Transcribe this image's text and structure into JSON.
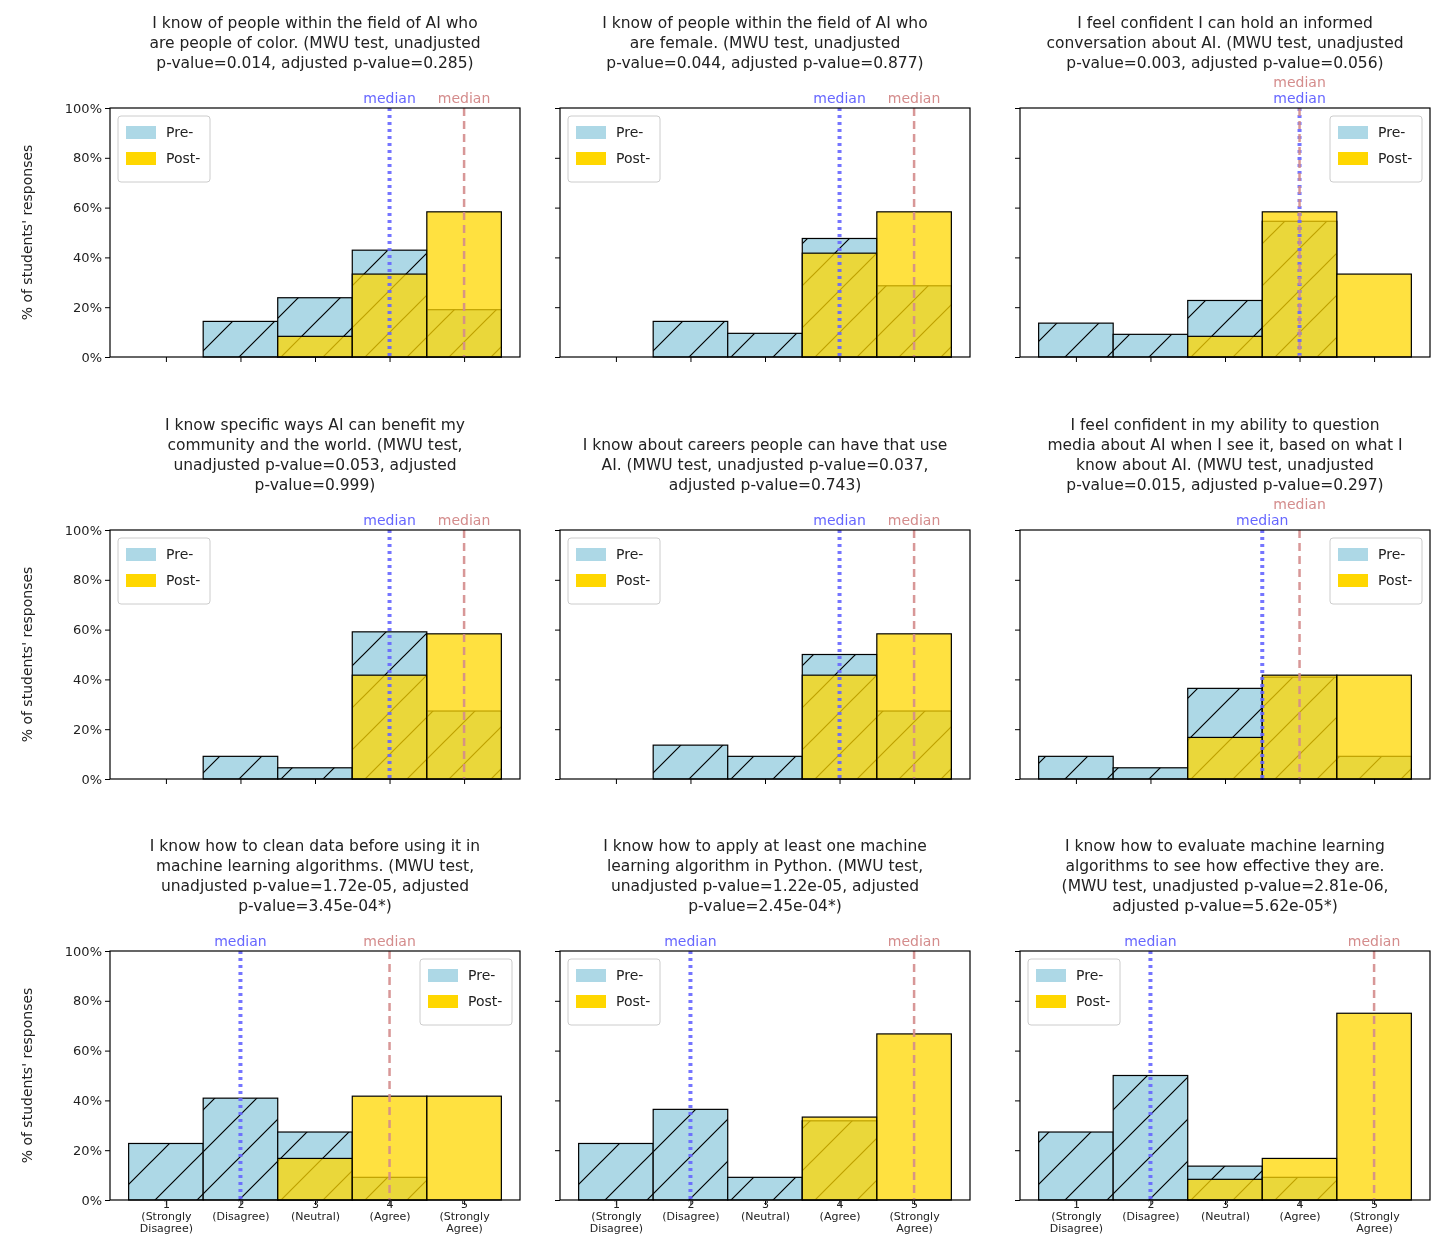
{
  "chart_data": [
    {
      "type": "histogram",
      "title": "I know of people within the field of AI who\nare people of color. (MWU test, unadjusted\np-value=0.014, adjusted p-value=0.285)",
      "ylabel": "% of students' responses",
      "bins": [
        0.5,
        1.5,
        2.5,
        3.5,
        4.5,
        5.5
      ],
      "series": [
        {
          "name": "Pre-",
          "color": "#add8e6",
          "values": [
            0,
            14.3,
            23.8,
            42.9,
            19.0
          ]
        },
        {
          "name": "Post-",
          "color": "#ffd700",
          "values": [
            0,
            0,
            8.3,
            33.3,
            58.3
          ]
        }
      ],
      "xlim": [
        0.25,
        5.75
      ],
      "xticks": [
        {
          "value": 1,
          "label": null
        },
        {
          "value": 2,
          "label": null
        },
        {
          "value": 3,
          "label": null
        },
        {
          "value": 4,
          "label": null
        },
        {
          "value": 5,
          "label": null
        }
      ],
      "ylim": [
        0,
        100
      ],
      "yticks": [
        {
          "value": 0,
          "label": "0%"
        },
        {
          "value": 20,
          "label": "20%"
        },
        {
          "value": 40,
          "label": "40%"
        },
        {
          "value": 60,
          "label": "60%"
        },
        {
          "value": 80,
          "label": "80%"
        },
        {
          "value": 100,
          "label": "100%"
        }
      ],
      "ref_lines": [
        {
          "axis": "x",
          "value": 4,
          "label": "median",
          "color": "#6666ff",
          "line_style": "dotted"
        },
        {
          "axis": "x",
          "value": 5,
          "label": "median",
          "color": "#d48c8c",
          "line_style": "dashed"
        }
      ],
      "legend": "top left",
      "tick_labels": "y"
    },
    {
      "type": "histogram",
      "title": "I know of people within the field of AI who\nare female. (MWU test, unadjusted\np-value=0.044, adjusted p-value=0.877)",
      "bins": [
        0.5,
        1.5,
        2.5,
        3.5,
        4.5,
        5.5
      ],
      "series": [
        {
          "name": "Pre-",
          "color": "#add8e6",
          "values": [
            0,
            14.3,
            9.5,
            47.6,
            28.6
          ]
        },
        {
          "name": "Post-",
          "color": "#ffd700",
          "values": [
            0,
            0,
            0,
            41.7,
            58.3
          ]
        }
      ],
      "xlim": [
        0.25,
        5.75
      ],
      "xticks": [
        {
          "value": 1,
          "label": null
        },
        {
          "value": 2,
          "label": null
        },
        {
          "value": 3,
          "label": null
        },
        {
          "value": 4,
          "label": null
        },
        {
          "value": 5,
          "label": null
        }
      ],
      "ylim": [
        0,
        100
      ],
      "yticks": [
        {
          "value": 0,
          "label": null
        },
        {
          "value": 20,
          "label": null
        },
        {
          "value": 40,
          "label": null
        },
        {
          "value": 60,
          "label": null
        },
        {
          "value": 80,
          "label": null
        },
        {
          "value": 100,
          "label": null
        }
      ],
      "ref_lines": [
        {
          "axis": "x",
          "value": 4,
          "label": "median",
          "color": "#6666ff",
          "line_style": "dotted"
        },
        {
          "axis": "x",
          "value": 5,
          "label": "median",
          "color": "#d48c8c",
          "line_style": "dashed"
        }
      ],
      "legend": "top left",
      "tick_labels": false
    },
    {
      "type": "histogram",
      "title": "I feel confident I can hold an informed\nconversation about AI. (MWU test, unadjusted\np-value=0.003, adjusted p-value=0.056)",
      "bins": [
        0.5,
        1.5,
        2.5,
        3.5,
        4.5,
        5.5
      ],
      "series": [
        {
          "name": "Pre-",
          "color": "#add8e6",
          "values": [
            13.6,
            9.1,
            22.7,
            54.5,
            0
          ]
        },
        {
          "name": "Post-",
          "color": "#ffd700",
          "values": [
            0,
            0,
            8.3,
            58.3,
            33.3
          ]
        }
      ],
      "xlim": [
        0.25,
        5.75
      ],
      "xticks": [
        {
          "value": 1,
          "label": null
        },
        {
          "value": 2,
          "label": null
        },
        {
          "value": 3,
          "label": null
        },
        {
          "value": 4,
          "label": null
        },
        {
          "value": 5,
          "label": null
        }
      ],
      "ylim": [
        0,
        100
      ],
      "yticks": [
        {
          "value": 0,
          "label": null
        },
        {
          "value": 20,
          "label": null
        },
        {
          "value": 40,
          "label": null
        },
        {
          "value": 60,
          "label": null
        },
        {
          "value": 80,
          "label": null
        },
        {
          "value": 100,
          "label": null
        }
      ],
      "ref_lines": [
        {
          "axis": "x",
          "value": 4,
          "label": "median",
          "color": "#6666ff",
          "line_style": "dotted"
        },
        {
          "axis": "x",
          "value": 4,
          "label": "median",
          "color": "#d48c8c",
          "line_style": "dashed"
        }
      ],
      "legend": "top right",
      "tick_labels": false
    },
    {
      "type": "histogram",
      "title": "I know specific ways AI can benefit my\ncommunity and the world. (MWU test,\nunadjusted p-value=0.053, adjusted\np-value=0.999)",
      "ylabel": "% of students' responses",
      "bins": [
        0.5,
        1.5,
        2.5,
        3.5,
        4.5,
        5.5
      ],
      "series": [
        {
          "name": "Pre-",
          "color": "#add8e6",
          "values": [
            0,
            9.1,
            4.5,
            59.1,
            27.3
          ]
        },
        {
          "name": "Post-",
          "color": "#ffd700",
          "values": [
            0,
            0,
            0,
            41.7,
            58.3
          ]
        }
      ],
      "xlim": [
        0.25,
        5.75
      ],
      "xticks": [
        {
          "value": 1,
          "label": null
        },
        {
          "value": 2,
          "label": null
        },
        {
          "value": 3,
          "label": null
        },
        {
          "value": 4,
          "label": null
        },
        {
          "value": 5,
          "label": null
        }
      ],
      "ylim": [
        0,
        100
      ],
      "yticks": [
        {
          "value": 0,
          "label": "0%"
        },
        {
          "value": 20,
          "label": "20%"
        },
        {
          "value": 40,
          "label": "40%"
        },
        {
          "value": 60,
          "label": "60%"
        },
        {
          "value": 80,
          "label": "80%"
        },
        {
          "value": 100,
          "label": "100%"
        }
      ],
      "ref_lines": [
        {
          "axis": "x",
          "value": 4,
          "label": "median",
          "color": "#6666ff",
          "line_style": "dotted"
        },
        {
          "axis": "x",
          "value": 5,
          "label": "median",
          "color": "#d48c8c",
          "line_style": "dashed"
        }
      ],
      "legend": "top left",
      "tick_labels": "y"
    },
    {
      "type": "histogram",
      "title": "I know about careers people can have that use\nAI. (MWU test, unadjusted p-value=0.037,\nadjusted p-value=0.743)",
      "bins": [
        0.5,
        1.5,
        2.5,
        3.5,
        4.5,
        5.5
      ],
      "series": [
        {
          "name": "Pre-",
          "color": "#add8e6",
          "values": [
            0,
            13.6,
            9.1,
            50.0,
            27.3
          ]
        },
        {
          "name": "Post-",
          "color": "#ffd700",
          "values": [
            0,
            0,
            0,
            41.7,
            58.3
          ]
        }
      ],
      "xlim": [
        0.25,
        5.75
      ],
      "xticks": [
        {
          "value": 1,
          "label": null
        },
        {
          "value": 2,
          "label": null
        },
        {
          "value": 3,
          "label": null
        },
        {
          "value": 4,
          "label": null
        },
        {
          "value": 5,
          "label": null
        }
      ],
      "ylim": [
        0,
        100
      ],
      "yticks": [
        {
          "value": 0,
          "label": null
        },
        {
          "value": 20,
          "label": null
        },
        {
          "value": 40,
          "label": null
        },
        {
          "value": 60,
          "label": null
        },
        {
          "value": 80,
          "label": null
        },
        {
          "value": 100,
          "label": null
        }
      ],
      "ref_lines": [
        {
          "axis": "x",
          "value": 4,
          "label": "median",
          "color": "#6666ff",
          "line_style": "dotted"
        },
        {
          "axis": "x",
          "value": 5,
          "label": "median",
          "color": "#d48c8c",
          "line_style": "dashed"
        }
      ],
      "legend": "top left",
      "tick_labels": false
    },
    {
      "type": "histogram",
      "title": "I feel confident in my ability to question\nmedia about AI when I see it, based on what I\nknow about AI. (MWU test, unadjusted\np-value=0.015, adjusted p-value=0.297)",
      "bins": [
        0.5,
        1.5,
        2.5,
        3.5,
        4.5,
        5.5
      ],
      "series": [
        {
          "name": "Pre-",
          "color": "#add8e6",
          "values": [
            9.1,
            4.5,
            36.4,
            40.9,
            9.1
          ]
        },
        {
          "name": "Post-",
          "color": "#ffd700",
          "values": [
            0,
            0,
            16.7,
            41.7,
            41.7
          ]
        }
      ],
      "xlim": [
        0.25,
        5.75
      ],
      "xticks": [
        {
          "value": 1,
          "label": null
        },
        {
          "value": 2,
          "label": null
        },
        {
          "value": 3,
          "label": null
        },
        {
          "value": 4,
          "label": null
        },
        {
          "value": 5,
          "label": null
        }
      ],
      "ylim": [
        0,
        100
      ],
      "yticks": [
        {
          "value": 0,
          "label": null
        },
        {
          "value": 20,
          "label": null
        },
        {
          "value": 40,
          "label": null
        },
        {
          "value": 60,
          "label": null
        },
        {
          "value": 80,
          "label": null
        },
        {
          "value": 100,
          "label": null
        }
      ],
      "ref_lines": [
        {
          "axis": "x",
          "value": 3.5,
          "label": "median",
          "color": "#6666ff",
          "line_style": "dotted"
        },
        {
          "axis": "x",
          "value": 4,
          "label": "median",
          "color": "#d48c8c",
          "line_style": "dashed"
        }
      ],
      "legend": "top right",
      "tick_labels": false
    },
    {
      "type": "histogram",
      "title": "I know how to clean data before using it in\nmachine learning algorithms. (MWU test,\nunadjusted p-value=1.72e-05, adjusted\np-value=3.45e-04*)",
      "ylabel": "% of students' responses",
      "bins": [
        0.5,
        1.5,
        2.5,
        3.5,
        4.5,
        5.5
      ],
      "series": [
        {
          "name": "Pre-",
          "color": "#add8e6",
          "values": [
            22.7,
            40.9,
            27.3,
            9.1,
            0
          ]
        },
        {
          "name": "Post-",
          "color": "#ffd700",
          "values": [
            0,
            0,
            16.7,
            41.7,
            41.7
          ]
        }
      ],
      "xlim": [
        0.25,
        5.75
      ],
      "xticks": [
        {
          "value": 1,
          "label": "1\n(Strongly\nDisagree)"
        },
        {
          "value": 2,
          "label": "2\n(Disagree)"
        },
        {
          "value": 3,
          "label": "3\n(Neutral)"
        },
        {
          "value": 4,
          "label": "4\n(Agree)"
        },
        {
          "value": 5,
          "label": "5\n(Strongly\nAgree)"
        }
      ],
      "ylim": [
        0,
        100
      ],
      "yticks": [
        {
          "value": 0,
          "label": "0%"
        },
        {
          "value": 20,
          "label": "20%"
        },
        {
          "value": 40,
          "label": "40%"
        },
        {
          "value": 60,
          "label": "60%"
        },
        {
          "value": 80,
          "label": "80%"
        },
        {
          "value": 100,
          "label": "100%"
        }
      ],
      "ref_lines": [
        {
          "axis": "x",
          "value": 2,
          "label": "median",
          "color": "#6666ff",
          "line_style": "dotted"
        },
        {
          "axis": "x",
          "value": 4,
          "label": "median",
          "color": "#d48c8c",
          "line_style": "dashed"
        }
      ],
      "legend": "top right"
    },
    {
      "type": "histogram",
      "title": "I know how to apply at least one machine\nlearning algorithm in Python. (MWU test,\nunadjusted p-value=1.22e-05, adjusted\np-value=2.45e-04*)",
      "bins": [
        0.5,
        1.5,
        2.5,
        3.5,
        4.5,
        5.5
      ],
      "series": [
        {
          "name": "Pre-",
          "color": "#add8e6",
          "values": [
            22.7,
            36.4,
            9.1,
            31.8,
            0
          ]
        },
        {
          "name": "Post-",
          "color": "#ffd700",
          "values": [
            0,
            0,
            0,
            33.3,
            66.7
          ]
        }
      ],
      "xlim": [
        0.25,
        5.75
      ],
      "xticks": [
        {
          "value": 1,
          "label": "1\n(Strongly\nDisagree)"
        },
        {
          "value": 2,
          "label": "2\n(Disagree)"
        },
        {
          "value": 3,
          "label": "3\n(Neutral)"
        },
        {
          "value": 4,
          "label": "4\n(Agree)"
        },
        {
          "value": 5,
          "label": "5\n(Strongly\nAgree)"
        }
      ],
      "ylim": [
        0,
        100
      ],
      "yticks": [
        {
          "value": 0,
          "label": null
        },
        {
          "value": 20,
          "label": null
        },
        {
          "value": 40,
          "label": null
        },
        {
          "value": 60,
          "label": null
        },
        {
          "value": 80,
          "label": null
        },
        {
          "value": 100,
          "label": null
        }
      ],
      "ref_lines": [
        {
          "axis": "x",
          "value": 2,
          "label": "median",
          "color": "#6666ff",
          "line_style": "dotted"
        },
        {
          "axis": "x",
          "value": 5,
          "label": "median",
          "color": "#d48c8c",
          "line_style": "dashed"
        }
      ],
      "legend": "top left",
      "tick_labels": "x"
    },
    {
      "type": "histogram",
      "title": "I know how to evaluate machine learning\nalgorithms to see how effective they are.\n(MWU test, unadjusted p-value=2.81e-06,\nadjusted p-value=5.62e-05*)",
      "bins": [
        0.5,
        1.5,
        2.5,
        3.5,
        4.5,
        5.5
      ],
      "series": [
        {
          "name": "Pre-",
          "color": "#add8e6",
          "values": [
            27.3,
            50.0,
            13.6,
            9.1,
            0
          ]
        },
        {
          "name": "Post-",
          "color": "#ffd700",
          "values": [
            0,
            0,
            8.3,
            16.7,
            75.0
          ]
        }
      ],
      "xlim": [
        0.25,
        5.75
      ],
      "xticks": [
        {
          "value": 1,
          "label": "1\n(Strongly\nDisagree)"
        },
        {
          "value": 2,
          "label": "2\n(Disagree)"
        },
        {
          "value": 3,
          "label": "3\n(Neutral)"
        },
        {
          "value": 4,
          "label": "4\n(Agree)"
        },
        {
          "value": 5,
          "label": "5\n(Strongly\nAgree)"
        }
      ],
      "ylim": [
        0,
        100
      ],
      "yticks": [
        {
          "value": 0,
          "label": null
        },
        {
          "value": 20,
          "label": null
        },
        {
          "value": 40,
          "label": null
        },
        {
          "value": 60,
          "label": null
        },
        {
          "value": 80,
          "label": null
        },
        {
          "value": 100,
          "label": null
        }
      ],
      "ref_lines": [
        {
          "axis": "x",
          "value": 2,
          "label": "median",
          "color": "#6666ff",
          "line_style": "dotted"
        },
        {
          "axis": "x",
          "value": 5,
          "label": "median",
          "color": "#d48c8c",
          "line_style": "dashed"
        }
      ],
      "legend": "top left",
      "tick_labels": "x"
    }
  ]
}
